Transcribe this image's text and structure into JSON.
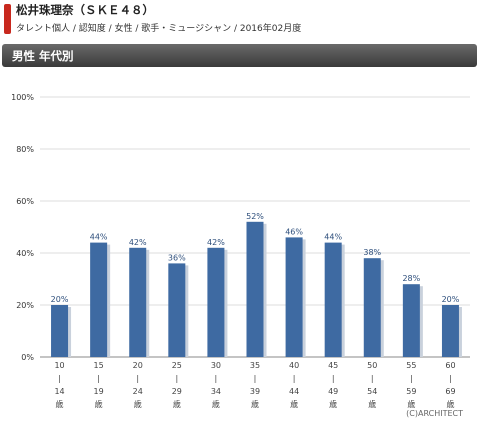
{
  "header": {
    "title": "松井珠理奈（ＳＫＥ４８）",
    "subtitle": "タレント個人 / 認知度 / 女性 / 歌手・ミュージシャン / 2016年02月度"
  },
  "banner": {
    "label": "男性 年代別"
  },
  "colors": {
    "bar": "#3e6aa2",
    "bar_shadow": "#c9d1dc",
    "banner": "#4a4a4a",
    "accent": "#c8281e"
  },
  "chart_data": {
    "type": "bar",
    "categories": [
      [
        "10",
        "|",
        "14",
        "歳"
      ],
      [
        "15",
        "|",
        "19",
        "歳"
      ],
      [
        "20",
        "|",
        "24",
        "歳"
      ],
      [
        "25",
        "|",
        "29",
        "歳"
      ],
      [
        "30",
        "|",
        "34",
        "歳"
      ],
      [
        "35",
        "|",
        "39",
        "歳"
      ],
      [
        "40",
        "|",
        "44",
        "歳"
      ],
      [
        "45",
        "|",
        "49",
        "歳"
      ],
      [
        "50",
        "|",
        "54",
        "歳"
      ],
      [
        "55",
        "|",
        "59",
        "歳"
      ],
      [
        "60",
        "|",
        "69",
        "歳"
      ]
    ],
    "values": [
      20,
      44,
      42,
      36,
      42,
      52,
      46,
      44,
      38,
      28,
      20
    ],
    "data_labels": [
      "20%",
      "44%",
      "42%",
      "36%",
      "42%",
      "52%",
      "46%",
      "44%",
      "38%",
      "28%",
      "20%"
    ],
    "yticks": [
      "0%",
      "20%",
      "40%",
      "60%",
      "80%",
      "100%"
    ],
    "ylim": [
      0,
      100
    ],
    "grid": true
  },
  "copyright": "(C)ARCHITECT"
}
